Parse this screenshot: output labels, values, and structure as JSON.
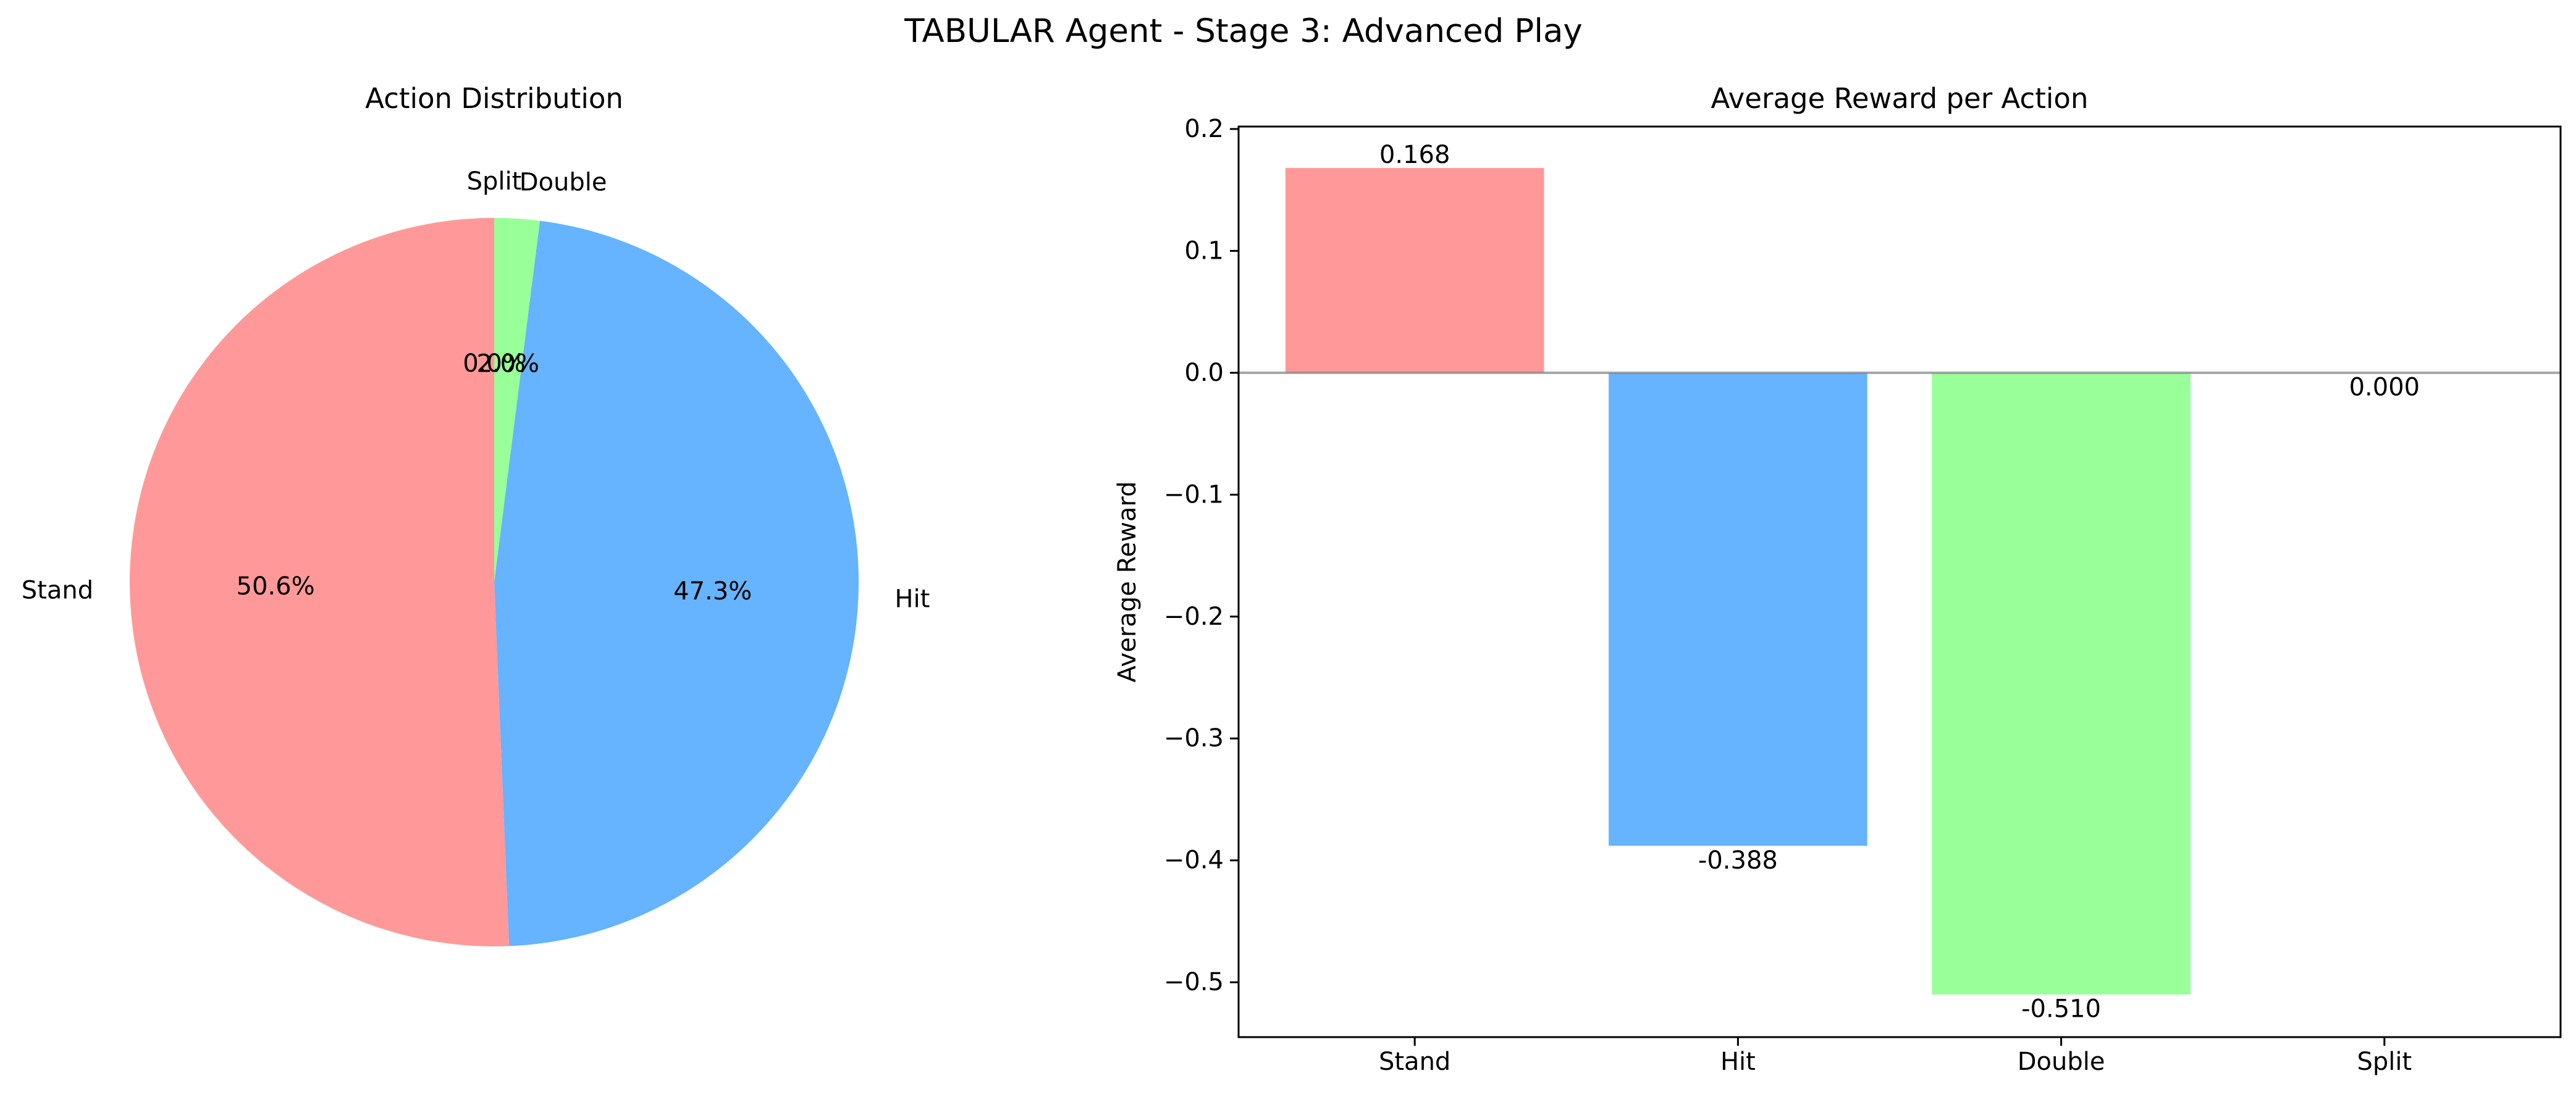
{
  "figure": {
    "title": "TABULAR Agent - Stage 3: Advanced Play"
  },
  "chart_data": [
    {
      "type": "pie",
      "title": "Action Distribution",
      "labels": [
        "Stand",
        "Hit",
        "Double",
        "Split"
      ],
      "values": [
        50.6,
        47.3,
        2.0,
        0.0
      ],
      "pct_labels": [
        "50.6%",
        "47.3%",
        "2.0%",
        "0.0%"
      ],
      "colors": [
        "#ff9999",
        "#66b3ff",
        "#99ff99",
        "#ffcc99"
      ],
      "start_angle": 90,
      "direction": "counterclockwise"
    },
    {
      "type": "bar",
      "title": "Average Reward per Action",
      "categories": [
        "Stand",
        "Hit",
        "Double",
        "Split"
      ],
      "values": [
        0.168,
        -0.388,
        -0.51,
        0.0
      ],
      "value_labels": [
        "0.168",
        "-0.388",
        "-0.510",
        "0.000"
      ],
      "colors": [
        "#ff9999",
        "#66b3ff",
        "#99ff99",
        "#ffcc99"
      ],
      "xlabel": "",
      "ylabel": "Average Reward",
      "ylim": [
        -0.545,
        0.202
      ],
      "yticks": [
        -0.5,
        -0.4,
        -0.3,
        -0.2,
        -0.1,
        0.0,
        0.1,
        0.2
      ],
      "ytick_labels": [
        "−0.5",
        "−0.4",
        "−0.3",
        "−0.2",
        "−0.1",
        "0.0",
        "0.1",
        "0.2"
      ],
      "zero_line": true,
      "grid": false
    }
  ]
}
